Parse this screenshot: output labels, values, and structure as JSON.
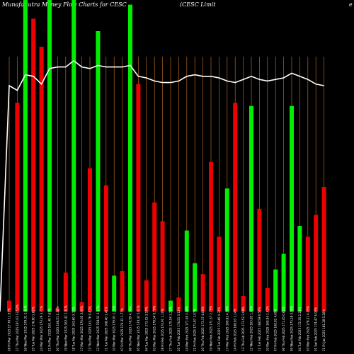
{
  "header": {
    "left": "MunafaSutra Money Flow Charts for CESC",
    "mid": "(CESC Limit",
    "right": "e"
  },
  "chart_data": {
    "type": "bar",
    "ylim": [
      0,
      100
    ],
    "grid": "vertical",
    "colors": {
      "up": "#00ee00",
      "down": "#ee0000",
      "grid": "#b5651d",
      "line": "#ffffff",
      "background": "#000000"
    },
    "bars": [
      {
        "date": "28 Fri Mar 2025",
        "value": 3.5,
        "dir": "down"
      },
      {
        "date": "27 Thu Mar 2025",
        "value": 67,
        "dir": "down"
      },
      {
        "date": "26 Wed Mar 2025",
        "value": 100,
        "dir": "up"
      },
      {
        "date": "25 Tue Mar 2025",
        "value": 94,
        "dir": "down"
      },
      {
        "date": "24 Mon Mar 2025",
        "value": 85,
        "dir": "down"
      },
      {
        "date": "21 Fri Mar 2025",
        "value": 100,
        "dir": "up"
      },
      {
        "date": "20 Thu Mar 2025",
        "value": 1,
        "dir": "down"
      },
      {
        "date": "19 Wed Mar 2025",
        "value": 12.5,
        "dir": "down"
      },
      {
        "date": "18 Tue Mar 2025",
        "value": 100,
        "dir": "up"
      },
      {
        "date": "17 Mon Mar 2025",
        "value": 3,
        "dir": "down"
      },
      {
        "date": "13 Thu Mar 2025",
        "value": 46,
        "dir": "down"
      },
      {
        "date": "12 Wed Mar 2025",
        "value": 90,
        "dir": "up"
      },
      {
        "date": "11 Tue Mar 2025",
        "value": 40.5,
        "dir": "down"
      },
      {
        "date": "10 Mon Mar 2025",
        "value": 11.5,
        "dir": "up"
      },
      {
        "date": "07 Fri Mar 2025",
        "value": 13,
        "dir": "down"
      },
      {
        "date": "06 Thu Mar 2025",
        "value": 98.5,
        "dir": "up"
      },
      {
        "date": "05 Wed Mar 2025",
        "value": 73,
        "dir": "down"
      },
      {
        "date": "04 Tue Mar 2025",
        "value": 10,
        "dir": "down"
      },
      {
        "date": "03 Mon Mar 2025",
        "value": 35,
        "dir": "down"
      },
      {
        "date": "28 Fri Feb 2025",
        "value": 29,
        "dir": "down"
      },
      {
        "date": "27 Thu Feb 2025",
        "value": 3.5,
        "dir": "up"
      },
      {
        "date": "25 Tue Feb 2025",
        "value": 4.5,
        "dir": "down"
      },
      {
        "date": "24 Mon Feb 2025",
        "value": 26,
        "dir": "up"
      },
      {
        "date": "21 Fri Feb 2025",
        "value": 15.5,
        "dir": "up"
      },
      {
        "date": "20 Thu Feb 2025",
        "value": 12,
        "dir": "down"
      },
      {
        "date": "19 Wed Feb 2025",
        "value": 48,
        "dir": "down"
      },
      {
        "date": "18 Tue Feb 2025",
        "value": 24,
        "dir": "down"
      },
      {
        "date": "17 Mon Feb 2025",
        "value": 39.5,
        "dir": "up"
      },
      {
        "date": "14 Fri Feb 2025",
        "value": 67,
        "dir": "down"
      },
      {
        "date": "13 Thu Feb 2025",
        "value": 5,
        "dir": "down"
      },
      {
        "date": "12 Wed Feb 2025",
        "value": 66,
        "dir": "up"
      },
      {
        "date": "11 Tue Feb 2025",
        "value": 33,
        "dir": "down"
      },
      {
        "date": "10 Mon Feb 2025",
        "value": 7.5,
        "dir": "down"
      },
      {
        "date": "07 Fri Feb 2025",
        "value": 13.5,
        "dir": "up"
      },
      {
        "date": "06 Thu Feb 2025",
        "value": 18.5,
        "dir": "up"
      },
      {
        "date": "05 Wed Feb 2025",
        "value": 66,
        "dir": "up"
      },
      {
        "date": "04 Tue Feb 2025",
        "value": 27.5,
        "dir": "up"
      },
      {
        "date": "03 Mon Feb 2025",
        "value": 24,
        "dir": "down"
      },
      {
        "date": "01 Sat Feb 2025",
        "value": 31,
        "dir": "down"
      },
      {
        "date": "31 Fri Jan 2025",
        "value": 40,
        "dir": "down"
      }
    ],
    "line": [
      72.5,
      71,
      76,
      75.5,
      73,
      78,
      78.5,
      78.5,
      80.5,
      78.5,
      78,
      79,
      78.5,
      78.5,
      78.5,
      79,
      75.5,
      75,
      74,
      73.5,
      73.5,
      74,
      75.5,
      76,
      75.5,
      75.5,
      75,
      74,
      73.5,
      74.5,
      75.5,
      74.5,
      74,
      74.5,
      75,
      76.5,
      75.5,
      74.5,
      73,
      72.5
    ],
    "x_labels": [
      "17.76 11.53%",
      "187.03 13.52%",
      "179.31 2.61%",
      "176.60 1.82%",
      "173.29 3.71%",
      "161.40 7.63%",
      "168.51 1.38%",
      "162.42 1.91%",
      "163.60 3.10%",
      "170.95 3.95%",
      "163.76 0.81%",
      "158.51 3.17%",
      "168.40 1.41%",
      "179.91 1.25%",
      "176.32 1.77%",
      "178.59 4.34%",
      "174.32 5.61%",
      "173.15 3.57%",
      "178.54 0.79%",
      "174.91 1.10%",
      "175.54 1.21%",
      "174.51 3.12%",
      "171.08 3.88%",
      "171.87 1.07%",
      "173.37 4.00%",
      "171.57 2.75%",
      "170.46 4.32%",
      "169.82 4.59%",
      "168.63 1.14%",
      "173.52 2.08%",
      "163.82 1.63%",
      "168.59 6.50%",
      "169.94 1.42%",
      "168.92 4.69%",
      "171.45 0.61%",
      "173.28 3.59%",
      "172.35 2.24%",
      "178.21 4.05%",
      "174.47 4.00%",
      "181.28 5.26%"
    ]
  }
}
